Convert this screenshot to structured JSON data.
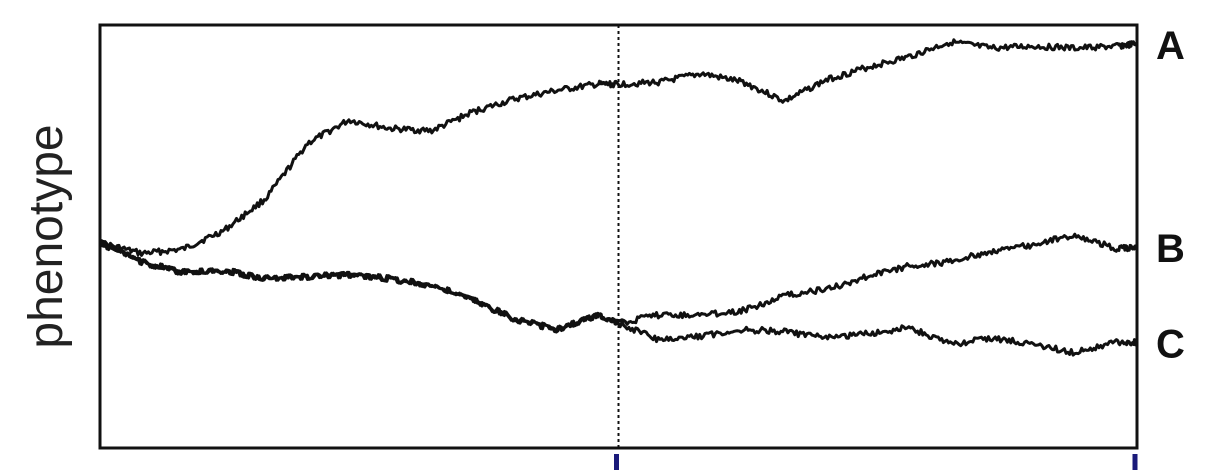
{
  "chart_data": {
    "type": "line",
    "title": "",
    "xlabel": "",
    "ylabel": "phenotype",
    "xlim": [
      0,
      100
    ],
    "ylim": [
      0,
      100
    ],
    "grid": false,
    "legend": "none",
    "branch_point_x": 50,
    "bottom_ticks_x": [
      50,
      100
    ],
    "line_color": "#111111",
    "tick_color": "#1a1a7a",
    "series": [
      {
        "name": "A",
        "label": "A",
        "x": [
          0,
          4,
          8,
          12,
          16,
          20,
          24,
          28,
          32,
          36,
          40,
          44,
          48,
          50,
          54,
          58,
          62,
          66,
          70,
          74,
          78,
          82,
          86,
          90,
          94,
          98,
          100
        ],
        "y": [
          48.5,
          46,
          47,
          51.5,
          59,
          72,
          77.5,
          75.5,
          75,
          79.5,
          82.5,
          84.5,
          86,
          86,
          86.5,
          88.5,
          86.5,
          82,
          87,
          90,
          92.5,
          96,
          94.5,
          95,
          94.5,
          95,
          95.5
        ]
      },
      {
        "name": "B",
        "label": "B",
        "x": [
          0,
          4,
          8,
          12,
          16,
          20,
          24,
          28,
          32,
          36,
          40,
          44,
          48,
          50,
          54,
          58,
          62,
          66,
          70,
          74,
          78,
          82,
          86,
          90,
          94,
          98,
          100
        ],
        "y": [
          48.5,
          44,
          41.5,
          42,
          40,
          40.5,
          41,
          40,
          38.5,
          35,
          30.5,
          28,
          31.5,
          29.5,
          31.5,
          31.5,
          32.5,
          36,
          37.5,
          40.5,
          43,
          44,
          46.5,
          48,
          50.5,
          47,
          47.5
        ]
      },
      {
        "name": "C",
        "label": "C",
        "x": [
          0,
          4,
          8,
          12,
          16,
          20,
          24,
          28,
          32,
          36,
          40,
          44,
          48,
          50,
          54,
          58,
          62,
          66,
          70,
          74,
          78,
          82,
          86,
          90,
          94,
          98,
          100
        ],
        "y": [
          48.5,
          44,
          41.5,
          42,
          40,
          40.5,
          41,
          40,
          38.5,
          35,
          30.5,
          28,
          31.5,
          29.5,
          25.5,
          26.5,
          28,
          27.5,
          26,
          27,
          28.5,
          24.5,
          26,
          24.5,
          22.5,
          25,
          25
        ]
      }
    ]
  }
}
